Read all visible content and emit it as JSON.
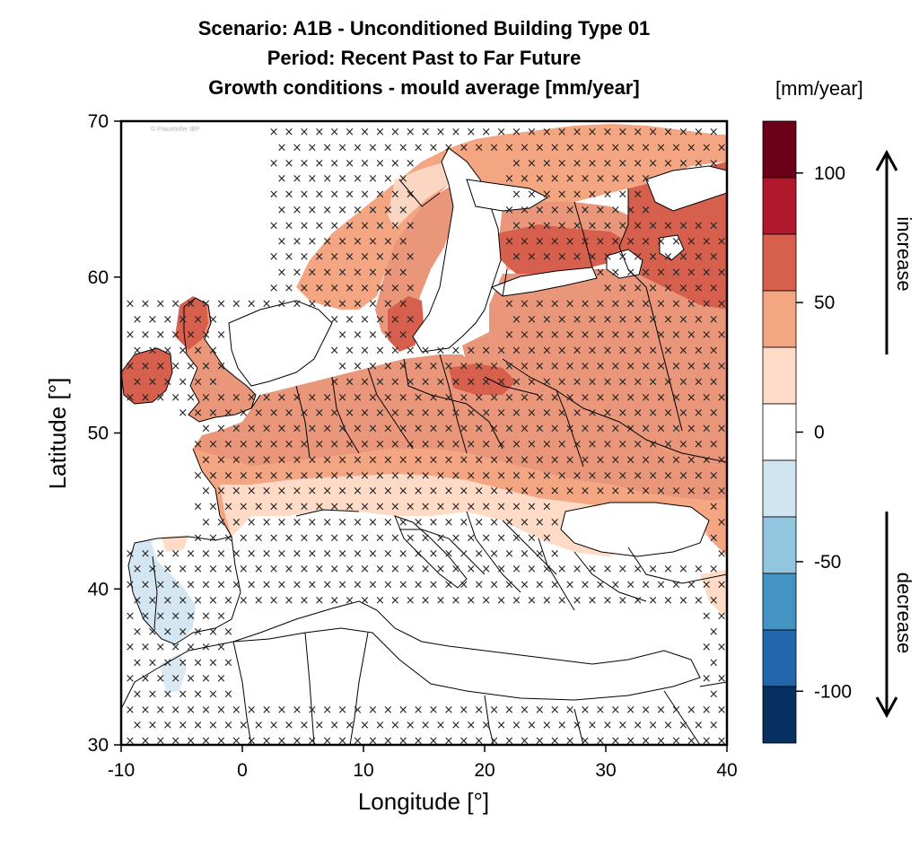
{
  "title": {
    "line1": "Scenario: A1B  -  Unconditioned Building Type 01",
    "line2": "Period: Recent Past to Far Future",
    "line3": "Growth conditions - mould average [mm/year]"
  },
  "colorbar": {
    "unit": "[mm/year]",
    "tick_labels": [
      "100",
      "50",
      "0",
      "-50",
      "-100"
    ],
    "increase_label": "increase",
    "decrease_label": "decrease",
    "colors": [
      "#6b0019",
      "#b2182b",
      "#d6604d",
      "#f4a582",
      "#fddbc7",
      "#ffffff",
      "#d1e5f0",
      "#92c5de",
      "#4393c3",
      "#2166ac",
      "#053061"
    ]
  },
  "credit": "© Fraunhofer IBP",
  "axes": {
    "x_label": "Longitude [°]",
    "y_label": "Latitude [°]",
    "x_ticks": [
      "-10",
      "0",
      "10",
      "20",
      "30",
      "40"
    ],
    "y_ticks": [
      "30",
      "40",
      "50",
      "60",
      "70"
    ]
  },
  "chart_data": {
    "type": "heatmap",
    "xlim": [
      -10,
      40
    ],
    "ylim": [
      30,
      70
    ],
    "value_range": [
      -120,
      120
    ],
    "legend_position": "right",
    "hatch_symbol": "×"
  }
}
